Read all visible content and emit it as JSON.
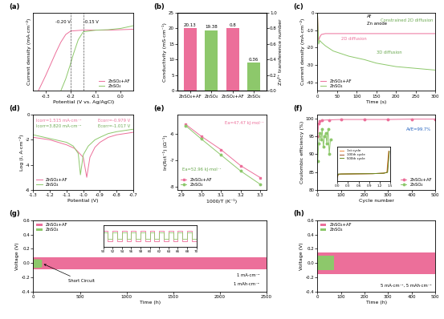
{
  "chart_data": [
    {
      "type": "line",
      "title": "(a)",
      "x_label": "Potential (V vs. Ag/AgCl)",
      "y_label": "Current density (mA·cm⁻²)",
      "xlim": [
        -0.35,
        0.05
      ],
      "xticks": [
        -0.3,
        -0.2,
        -0.1,
        0.0
      ],
      "ylim": [
        -7,
        2
      ],
      "tick_labels": "x",
      "legend": "lower right",
      "onset_potentials": [
        -0.2,
        -0.15
      ],
      "annotations": [
        {
          "text": "-0.20 V",
          "color": "#000000"
        },
        {
          "text": "-0.15 V",
          "color": "#000000"
        }
      ],
      "series": [
        {
          "name": "ZnSO₄+AF",
          "color": "#ec6f9a",
          "line_style": "solid",
          "x": [
            -0.33,
            -0.3,
            -0.28,
            -0.26,
            -0.24,
            -0.22,
            -0.2,
            -0.15,
            -0.1,
            -0.05,
            0.0,
            0.05
          ],
          "values": [
            -7,
            -5.2,
            -3.9,
            -2.6,
            -1.4,
            -0.5,
            -0.1,
            0,
            0,
            0,
            0.05,
            0.1
          ]
        },
        {
          "name": "ZnSO₄",
          "color": "#8dc86b",
          "line_style": "solid",
          "x": [
            -0.24,
            -0.22,
            -0.2,
            -0.19,
            -0.17,
            -0.15,
            -0.1,
            -0.05,
            0.0,
            0.05
          ],
          "values": [
            -7,
            -5.6,
            -3.8,
            -2.8,
            -1.1,
            -0.2,
            0,
            0.05,
            0.2,
            0.5
          ]
        }
      ]
    },
    {
      "type": "bar",
      "title": "(b)",
      "y_label": "Conductivity (mS·cm⁻¹)",
      "y2_label": "Zn²⁺ transference number",
      "categories": [
        "ZnSO₄+AF",
        "ZnSO₄",
        "ZnSO₄+AF",
        "ZnSO₄"
      ],
      "ylim": [
        0,
        25
      ],
      "yticks": [
        0,
        5,
        10,
        15,
        20,
        25
      ],
      "y2lim": [
        0.0,
        1.0
      ],
      "y2ticks": [
        0.0,
        0.2,
        0.4,
        0.6,
        0.8,
        1.0
      ],
      "series": [
        {
          "values": [
            20.13,
            19.38,
            null,
            null
          ],
          "colors": [
            "#ec6f9a",
            "#8dc86b",
            "#ec6f9a",
            "#8dc86b"
          ],
          "data_labels": true
        },
        {
          "values": [
            null,
            null,
            0.8,
            0.36
          ],
          "colors": [
            "#ec6f9a",
            "#8dc86b",
            "#ec6f9a",
            "#8dc86b"
          ],
          "data_labels": true,
          "axis": "y2"
        }
      ]
    },
    {
      "type": "line",
      "title": "(c)",
      "x_label": "Time (s)",
      "y_label": "Current density (mA·cm⁻²)",
      "xlim": [
        0,
        300
      ],
      "xticks": [
        0,
        50,
        100,
        150,
        200,
        250,
        300
      ],
      "ylim": [
        -45,
        0
      ],
      "yticks": [
        -40,
        -30,
        -20,
        -10,
        0
      ],
      "legend": "lower left",
      "annotations": [
        {
          "text": "2D diffusion",
          "color": "#ec6f9a"
        },
        {
          "text": "3D diffusion",
          "color": "#6aa84f"
        },
        {
          "text": "AF",
          "color": "#000000"
        },
        {
          "text": "Zn anode",
          "color": "#000000"
        },
        {
          "text": "Constrained 2D diffusion",
          "color": "#6aa84f"
        }
      ],
      "series": [
        {
          "name": "ZnSO₄+AF",
          "color": "#ec6f9a",
          "line_style": "solid",
          "x": [
            0,
            3,
            6,
            10,
            20,
            40,
            80,
            150,
            220,
            300
          ],
          "values": [
            0,
            -16,
            -14,
            -12.5,
            -12,
            -12,
            -12,
            -12,
            -12,
            -12
          ]
        },
        {
          "name": "ZnSO₄",
          "color": "#8dc86b",
          "line_style": "solid",
          "x": [
            0,
            3,
            6,
            10,
            20,
            40,
            80,
            120,
            150,
            200,
            250,
            300
          ],
          "values": [
            0,
            -18,
            -16,
            -17,
            -19,
            -22,
            -25,
            -27,
            -29,
            -31,
            -32,
            -33
          ]
        }
      ]
    },
    {
      "type": "line",
      "title": "(d)",
      "x_label": "Potential (V)",
      "y_label": "Log (I, A·cm⁻²)",
      "xlim": [
        -1.3,
        -0.7
      ],
      "xticks": [
        -1.3,
        -1.2,
        -1.1,
        -1.0,
        -0.9,
        -0.8,
        -0.7
      ],
      "ylim": [
        -6,
        0
      ],
      "yticks": [
        -6,
        -4,
        -2,
        0
      ],
      "legend": "lower left",
      "annotations": [
        {
          "text": "Icorr=1.515 mA·cm⁻²",
          "color": "#ec6f9a"
        },
        {
          "text": "Ecorr=-0.979 V",
          "color": "#ec6f9a"
        },
        {
          "text": "Icorr=3.820 mA·cm⁻²",
          "color": "#6aa84f"
        },
        {
          "text": "Ecorr=-1.017 V",
          "color": "#6aa84f"
        }
      ],
      "series": [
        {
          "name": "ZnSO₄+AF",
          "color": "#ec6f9a",
          "line_style": "solid",
          "x": [
            -1.3,
            -1.2,
            -1.1,
            -1.05,
            -1.0,
            -0.979,
            -0.96,
            -0.93,
            -0.9,
            -0.85,
            -0.8,
            -0.75,
            -0.7
          ],
          "values": [
            -1.8,
            -2.0,
            -2.4,
            -2.7,
            -3.4,
            -5.0,
            -3.4,
            -2.6,
            -2.2,
            -1.8,
            -1.6,
            -1.5,
            -1.4
          ]
        },
        {
          "name": "ZnSO₄",
          "color": "#8dc86b",
          "line_style": "solid",
          "x": [
            -1.3,
            -1.2,
            -1.1,
            -1.06,
            -1.03,
            -1.017,
            -1.0,
            -0.97,
            -0.93,
            -0.9,
            -0.85,
            -0.8,
            -0.75,
            -0.7
          ],
          "values": [
            -1.6,
            -1.9,
            -2.2,
            -2.5,
            -3.1,
            -4.8,
            -3.2,
            -2.5,
            -2.0,
            -1.8,
            -1.5,
            -1.35,
            -1.25,
            -1.15
          ]
        }
      ]
    },
    {
      "type": "line",
      "title": "(e)",
      "x_label": "1000/T (K⁻¹)",
      "y_label": "ln(Rct⁻¹) (Ω⁻¹)",
      "xlim": [
        2.88,
        3.33
      ],
      "xticks": [
        2.9,
        3.0,
        3.1,
        3.2,
        3.3
      ],
      "ylim": [
        -8.1,
        -5.3
      ],
      "yticks": [
        -8,
        -7,
        -6
      ],
      "legend": "lower left",
      "annotations": [
        {
          "text": "Ea=47.47 kJ·mol⁻¹",
          "color": "#ec6f9a"
        },
        {
          "text": "Ea=52.96 kJ·mol⁻¹",
          "color": "#6aa84f"
        }
      ],
      "series": [
        {
          "name": "ZnSO₄+AF",
          "color": "#ec6f9a",
          "marker": "square",
          "line_style": "solid",
          "x": [
            2.92,
            3.0,
            3.1,
            3.2,
            3.3
          ],
          "values": [
            -5.65,
            -6.1,
            -6.6,
            -7.2,
            -7.65
          ]
        },
        {
          "name": "ZnSO₄",
          "color": "#8dc86b",
          "marker": "circle",
          "line_style": "solid",
          "x": [
            2.92,
            3.0,
            3.1,
            3.2,
            3.3
          ],
          "values": [
            -5.7,
            -6.2,
            -6.8,
            -7.4,
            -7.9
          ]
        }
      ]
    },
    {
      "type": "line",
      "title": "(f)",
      "x_label": "Cycle number",
      "y_label": "Coulombic efficiency (%)",
      "xlim": [
        0,
        500
      ],
      "xticks": [
        0,
        100,
        200,
        300,
        400,
        500
      ],
      "ylim": [
        80,
        101
      ],
      "yticks": [
        80,
        85,
        90,
        95,
        100
      ],
      "legend": "lower right",
      "annotations": [
        {
          "text": "AVE=99.7%",
          "color": "#1f5fbf"
        }
      ],
      "series": [
        {
          "name": "ZnSO₄+AF",
          "color": "#ec6f9a",
          "marker": "circle",
          "line_style": "solid",
          "x": [
            1,
            5,
            10,
            20,
            50,
            100,
            200,
            300,
            400,
            500
          ],
          "values": [
            95,
            98.5,
            99.2,
            99.5,
            99.6,
            99.7,
            99.7,
            99.7,
            99.8,
            99.8
          ]
        },
        {
          "name": "ZnSO₄",
          "color": "#8dc86b",
          "marker": "circle",
          "line_style": "solid",
          "x": [
            1,
            5,
            10,
            15,
            20,
            25,
            30,
            35,
            40,
            45,
            50,
            55
          ],
          "values": [
            88,
            93,
            96,
            94,
            97,
            92,
            95,
            96,
            93,
            97,
            90,
            94
          ]
        }
      ],
      "inset": {
        "type": "line",
        "xlim": [
          0.0,
          1.5
        ],
        "xticks": [
          0.0,
          0.3,
          0.6,
          0.9,
          1.2,
          1.5
        ],
        "ylim": [
          -0.2,
          0.6
        ],
        "tick_labels": "x",
        "legend": "upper left",
        "series": [
          {
            "name": "1st cycle",
            "color": "#f08a3c",
            "line_style": "solid",
            "x": [
              0,
              0.02,
              0.1,
              0.5,
              1.0,
              1.3,
              1.4,
              1.42,
              1.45
            ],
            "values": [
              -0.12,
              -0.05,
              -0.04,
              -0.035,
              -0.03,
              -0.02,
              0.0,
              0.2,
              0.5
            ]
          },
          {
            "name": "100th cycle",
            "color": "#a0522d",
            "line_style": "solid",
            "x": [
              0,
              0.02,
              0.1,
              0.5,
              1.0,
              1.3,
              1.41,
              1.43,
              1.46
            ],
            "values": [
              -0.1,
              -0.045,
              -0.04,
              -0.035,
              -0.03,
              -0.02,
              0.0,
              0.2,
              0.5
            ]
          },
          {
            "name": "500th cycle",
            "color": "#6b8e23",
            "line_style": "solid",
            "x": [
              0,
              0.02,
              0.1,
              0.5,
              1.0,
              1.3,
              1.42,
              1.44,
              1.47
            ],
            "values": [
              -0.09,
              -0.04,
              -0.038,
              -0.034,
              -0.03,
              -0.02,
              0.0,
              0.2,
              0.5
            ]
          }
        ]
      }
    },
    {
      "type": "area",
      "title": "(g)",
      "x_label": "Time (h)",
      "y_label": "Voltage (V)",
      "xlim": [
        0,
        2500
      ],
      "xticks": [
        0,
        500,
        1000,
        1500,
        2000,
        2500
      ],
      "ylim": [
        -0.4,
        0.6
      ],
      "yticks": [
        -0.4,
        -0.2,
        0.0,
        0.2,
        0.4,
        0.6
      ],
      "legend": "upper left",
      "annotations": [
        {
          "text": "Short Circuit",
          "color": "#000000"
        },
        {
          "text": "1 mA·cm⁻²",
          "color": "#000000"
        },
        {
          "text": "1 mAh·cm⁻²",
          "color": "#000000"
        }
      ],
      "series": [
        {
          "name": "ZnSO₄+AF",
          "color": "#ec6f9a",
          "x": [
            0,
            2500
          ],
          "values": [
            0.08,
            0.08
          ],
          "lower": [
            -0.08,
            -0.08
          ]
        },
        {
          "name": "ZnSO₄",
          "color": "#8dc86b",
          "x": [
            0,
            30,
            60,
            90
          ],
          "values": [
            0.06,
            0.06,
            0.06,
            0.05
          ],
          "lower": [
            -0.06,
            -0.06,
            -0.06,
            -0.05
          ]
        }
      ],
      "inset": {
        "type": "step",
        "xlim": [
          50,
          70
        ],
        "xticks": [
          50,
          52,
          54,
          56,
          58,
          60,
          62,
          64,
          66,
          68,
          70
        ],
        "ylim": [
          -0.1,
          0.1
        ],
        "tick_labels": "x",
        "series": [
          {
            "color": "#ec6f9a",
            "x": [
              50,
              51,
              52,
              53,
              54,
              55,
              56,
              57,
              58,
              59,
              60,
              61,
              62,
              63,
              64,
              65,
              66,
              67,
              68,
              69,
              70
            ],
            "values": [
              0.05,
              -0.05,
              0.05,
              -0.05,
              0.05,
              -0.05,
              0.05,
              -0.05,
              0.05,
              -0.05,
              0.05,
              -0.05,
              0.05,
              -0.05,
              0.05,
              -0.05,
              0.05,
              -0.05,
              0.05,
              -0.05,
              0.05
            ]
          },
          {
            "color": "#8dc86b",
            "x": [
              50,
              51,
              52,
              53,
              54,
              55,
              56,
              57,
              58,
              59,
              60,
              61,
              62,
              63,
              64,
              65,
              66,
              67,
              68,
              69,
              70
            ],
            "values": [
              0.03,
              -0.03,
              0.03,
              -0.03,
              0.03,
              -0.03,
              0.03,
              -0.03,
              0.03,
              -0.03,
              0.03,
              -0.03,
              0.03,
              -0.03,
              0.03,
              -0.03,
              0.03,
              -0.03,
              0.03,
              -0.03,
              0.03
            ]
          }
        ]
      }
    },
    {
      "type": "area",
      "title": "(h)",
      "x_label": "Time (h)",
      "y_label": "Voltage (V)",
      "xlim": [
        0,
        500
      ],
      "xticks": [
        0,
        100,
        200,
        300,
        400,
        500
      ],
      "ylim": [
        -0.4,
        0.6
      ],
      "yticks": [
        -0.4,
        -0.2,
        0.0,
        0.2,
        0.4,
        0.6
      ],
      "legend": "upper left",
      "annotations": [
        {
          "text": "5 mA·cm⁻², 5 mAh·cm⁻²",
          "color": "#000000"
        }
      ],
      "series": [
        {
          "name": "ZnSO₄+AF",
          "color": "#ec6f9a",
          "x": [
            0,
            500
          ],
          "values": [
            0.15,
            0.15
          ],
          "lower": [
            -0.15,
            -0.15
          ]
        },
        {
          "name": "ZnSO₄",
          "color": "#8dc86b",
          "x": [
            0,
            20,
            40,
            60,
            70
          ],
          "values": [
            0.1,
            0.1,
            0.1,
            0.1,
            0.1
          ],
          "lower": [
            -0.1,
            -0.1,
            -0.1,
            -0.1,
            -0.1
          ]
        }
      ]
    }
  ]
}
